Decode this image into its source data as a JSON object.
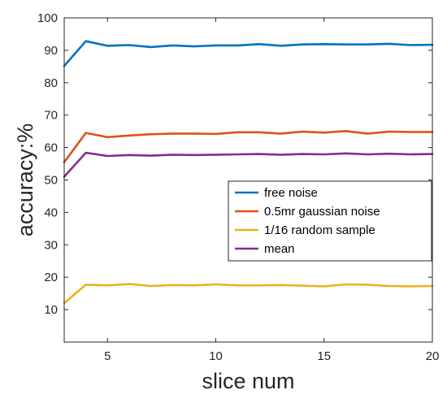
{
  "chart_data": {
    "type": "line",
    "title": "",
    "xlabel": "slice num",
    "ylabel": "accuracy:%",
    "xlim": [
      3,
      20
    ],
    "ylim": [
      0,
      100
    ],
    "x_ticks": [
      5,
      10,
      15,
      20
    ],
    "y_ticks": [
      10,
      20,
      30,
      40,
      50,
      60,
      70,
      80,
      90,
      100
    ],
    "grid": false,
    "legend_position": "center-right",
    "x": [
      3,
      4,
      5,
      6,
      7,
      8,
      9,
      10,
      11,
      12,
      13,
      14,
      15,
      16,
      17,
      18,
      19,
      20
    ],
    "series": [
      {
        "name": "free noise",
        "color": "#0072BD",
        "values": [
          85.2,
          92.8,
          91.4,
          91.6,
          91.0,
          91.5,
          91.2,
          91.5,
          91.5,
          91.9,
          91.4,
          91.8,
          91.9,
          91.8,
          91.8,
          92.0,
          91.6,
          91.7
        ]
      },
      {
        "name": "0.5mr gaussian noise",
        "color": "#D95319",
        "values": [
          55.5,
          64.5,
          63.2,
          63.7,
          64.1,
          64.3,
          64.3,
          64.2,
          64.7,
          64.7,
          64.3,
          64.9,
          64.6,
          65.1,
          64.3,
          64.9,
          64.8,
          64.8
        ]
      },
      {
        "name": "1/16 random sample",
        "color": "#EDB120",
        "values": [
          12.0,
          17.7,
          17.5,
          17.9,
          17.3,
          17.6,
          17.5,
          17.8,
          17.5,
          17.5,
          17.6,
          17.4,
          17.2,
          17.8,
          17.7,
          17.3,
          17.2,
          17.3
        ]
      },
      {
        "name": "mean",
        "color": "#7E2F8E",
        "values": [
          51.0,
          58.4,
          57.4,
          57.7,
          57.5,
          57.8,
          57.7,
          57.8,
          57.9,
          58.0,
          57.8,
          58.0,
          57.9,
          58.2,
          57.9,
          58.1,
          57.9,
          58.0
        ]
      }
    ]
  }
}
